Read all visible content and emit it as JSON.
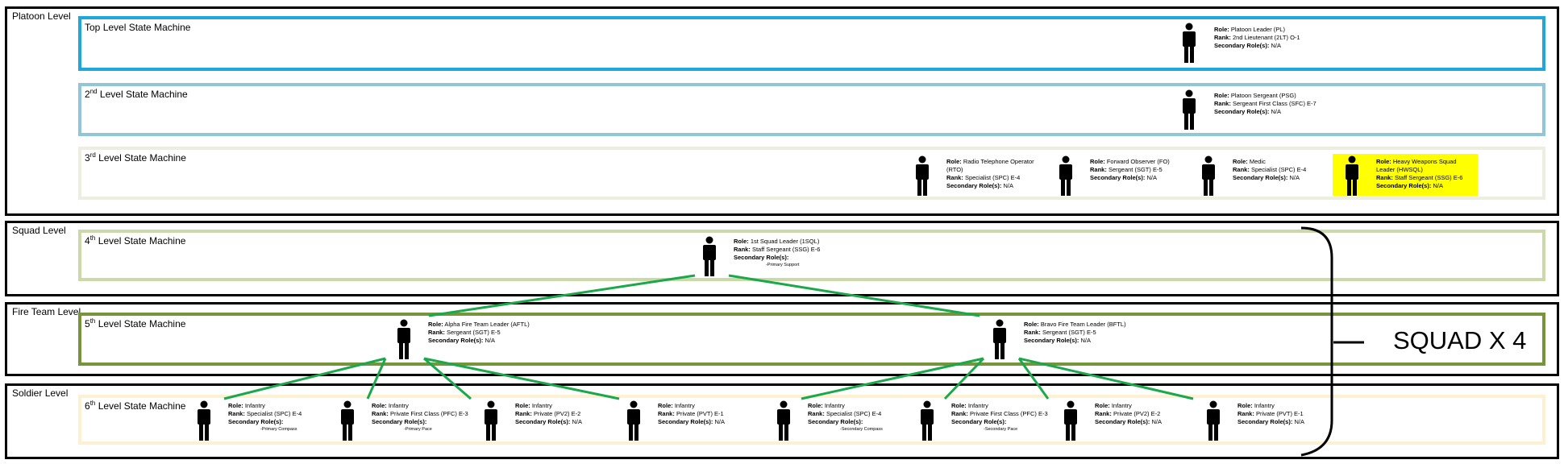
{
  "levels": {
    "platoon": "Platoon Level",
    "squad": "Squad Level",
    "fireteam": "Fire Team Level",
    "soldier": "Soldier Level"
  },
  "state_machines": {
    "l1": {
      "num": "Top",
      "sup": "",
      "rest": " Level State Machine"
    },
    "l2": {
      "num": "2",
      "sup": "nd",
      "rest": " Level State Machine"
    },
    "l3": {
      "num": "3",
      "sup": "rd",
      "rest": " Level State Machine"
    },
    "l4": {
      "num": "4",
      "sup": "th",
      "rest": " Level State Machine"
    },
    "l5": {
      "num": "5",
      "sup": "th",
      "rest": " Level State Machine"
    },
    "l6": {
      "num": "6",
      "sup": "th",
      "rest": " Level State Machine"
    }
  },
  "labels": {
    "role": "Role:",
    "rank": "Rank:",
    "secondary": "Secondary Role(s):"
  },
  "people": {
    "pl": {
      "role": "Platoon Leader (PL)",
      "rank": "2nd Lieutenant (2LT) O-1",
      "secondary": "N/A"
    },
    "psg": {
      "role": "Platoon Sergeant (PSG)",
      "rank": "Sergeant First Class (SFC) E-7",
      "secondary": "N/A"
    },
    "rto": {
      "role": "Radio Telephone Operator (RTO)",
      "rank": "Specialist (SPC) E-4",
      "secondary": "N/A"
    },
    "fo": {
      "role": "Forward Observer (FO)",
      "rank": "Sergeant (SGT) E-5",
      "secondary": "N/A"
    },
    "medic": {
      "role": "Medic",
      "rank": "Specialist (SPC) E-4",
      "secondary": "N/A"
    },
    "hwsql": {
      "role": "Heavy Weapons Squad Leader (HWSQL)",
      "rank": "Staff Sergeant (SSG) E-6",
      "secondary": "N/A"
    },
    "sl": {
      "role": "1st Squad Leader (1SQL)",
      "rank": "Staff Sergeant (SSG) E-6",
      "secondary": "",
      "sub": "-Primary Support"
    },
    "aftl": {
      "role": "Alpha Fire Team Leader (AFTL)",
      "rank": "Sergeant (SGT) E-5",
      "secondary": "N/A"
    },
    "bftl": {
      "role": "Bravo Fire Team Leader (BFTL)",
      "rank": "Sergeant (SGT) E-5",
      "secondary": "N/A"
    },
    "s1": {
      "role": "Infantry",
      "rank": "Specialist (SPC) E-4",
      "secondary": "",
      "sub": "-Primary Compass"
    },
    "s2": {
      "role": "Infantry",
      "rank": "Private First Class (PFC) E-3",
      "secondary": "",
      "sub": "-Primary Pace"
    },
    "s3": {
      "role": "Infantry",
      "rank": "Private (PV2) E-2",
      "secondary": "N/A"
    },
    "s4": {
      "role": "Infantry",
      "rank": "Private (PVT) E-1",
      "secondary": "N/A"
    },
    "s5": {
      "role": "Infantry",
      "rank": "Specialist (SPC) E-4",
      "secondary": "",
      "sub": "-Secondary Compass"
    },
    "s6": {
      "role": "Infantry",
      "rank": "Private First Class (PFC) E-3",
      "secondary": "",
      "sub": "-Secondary Pace"
    },
    "s7": {
      "role": "Infantry",
      "rank": "Private (PV2) E-2",
      "secondary": "N/A"
    },
    "s8": {
      "role": "Infantry",
      "rank": "Private (PVT) E-1",
      "secondary": "N/A"
    }
  },
  "squad_multiplier": "SQUAD X 4",
  "colors": {
    "l1": "#1fa7db",
    "l2": "#8fc6d8",
    "l3": "#eeeee0",
    "l4": "#c9d9a8",
    "l5": "#76953a",
    "l6": "#fdf1d2",
    "links": "#1aa84a",
    "highlight": "#ffff00"
  }
}
